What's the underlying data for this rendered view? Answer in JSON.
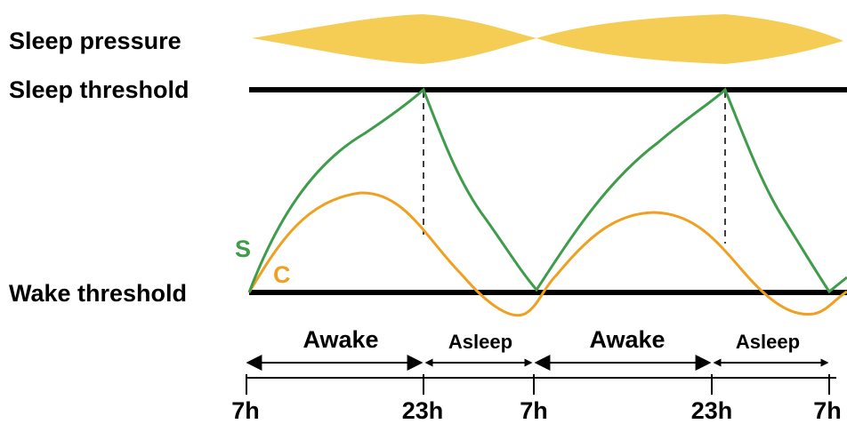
{
  "labels": {
    "sleep_pressure": "Sleep pressure",
    "sleep_threshold": "Sleep threshold",
    "wake_threshold": "Wake threshold",
    "s_curve": "S",
    "c_curve": "C"
  },
  "states": [
    "Awake",
    "Asleep",
    "Awake",
    "Asleep"
  ],
  "ticks": [
    "7h",
    "23h",
    "7h",
    "23h",
    "7h"
  ],
  "colors": {
    "pressure_fill": "#F5CD54",
    "s_curve": "#3E9C4A",
    "c_curve": "#F0A020",
    "threshold": "#000000"
  }
}
